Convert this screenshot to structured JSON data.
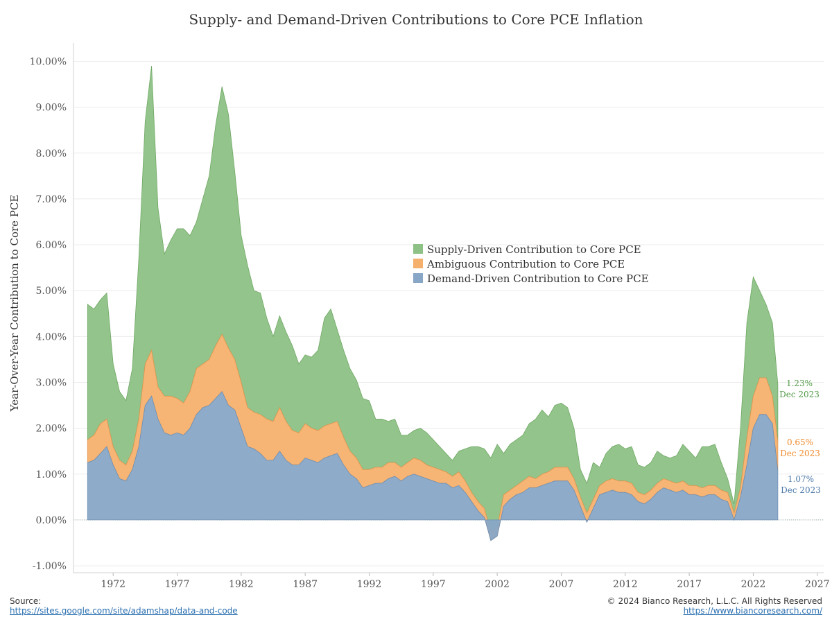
{
  "chart_data": {
    "type": "area",
    "title": "Supply- and Demand-Driven Contributions to Core PCE Inflation",
    "ylabel": "Year-Over-Year Contribution to Core PCE",
    "xlabel": "",
    "xlim": [
      1968.9,
      2027.5
    ],
    "ylim": [
      -1.15,
      10.4
    ],
    "yticks": [
      -1,
      0,
      1,
      2,
      3,
      4,
      5,
      6,
      7,
      8,
      9,
      10
    ],
    "ytick_labels": [
      "-1.00%",
      "0.00%",
      "1.00%",
      "2.00%",
      "3.00%",
      "4.00%",
      "5.00%",
      "6.00%",
      "7.00%",
      "8.00%",
      "9.00%",
      "10.00%"
    ],
    "xticks": [
      1972,
      1977,
      1982,
      1987,
      1992,
      1997,
      2002,
      2007,
      2012,
      2017,
      2022,
      2027
    ],
    "xtick_labels": [
      "1972",
      "1977",
      "1982",
      "1987",
      "1992",
      "1997",
      "2002",
      "2007",
      "2012",
      "2017",
      "2022",
      "2027"
    ],
    "legend_position": "center",
    "grid": true,
    "colors": {
      "supply": "#8dc185",
      "ambiguous": "#f6b06e",
      "demand": "#88a6c6",
      "supply_text": "#4f9a44",
      "ambiguous_text": "#f08a2a",
      "demand_text": "#4a78a8"
    },
    "series": [
      {
        "name": "Demand-Driven Contribution to Core PCE",
        "key": "demand",
        "x": [
          1970.0,
          1970.5,
          1971.0,
          1971.5,
          1972.0,
          1972.5,
          1973.0,
          1973.5,
          1974.0,
          1974.5,
          1975.0,
          1975.5,
          1976.0,
          1976.5,
          1977.0,
          1977.5,
          1978.0,
          1978.5,
          1979.0,
          1979.5,
          1980.0,
          1980.5,
          1981.0,
          1981.5,
          1982.0,
          1982.5,
          1983.0,
          1983.5,
          1984.0,
          1984.5,
          1985.0,
          1985.5,
          1986.0,
          1986.5,
          1987.0,
          1987.5,
          1988.0,
          1988.5,
          1989.0,
          1989.5,
          1990.0,
          1990.5,
          1991.0,
          1991.5,
          1992.0,
          1992.5,
          1993.0,
          1993.5,
          1994.0,
          1994.5,
          1995.0,
          1995.5,
          1996.0,
          1996.5,
          1997.0,
          1997.5,
          1998.0,
          1998.5,
          1999.0,
          1999.5,
          2000.0,
          2000.5,
          2001.0,
          2001.5,
          2002.0,
          2002.5,
          2003.0,
          2003.5,
          2004.0,
          2004.5,
          2005.0,
          2005.5,
          2006.0,
          2006.5,
          2007.0,
          2007.5,
          2008.0,
          2008.5,
          2009.0,
          2009.5,
          2010.0,
          2010.5,
          2011.0,
          2011.5,
          2012.0,
          2012.5,
          2013.0,
          2013.5,
          2014.0,
          2014.5,
          2015.0,
          2015.5,
          2016.0,
          2016.5,
          2017.0,
          2017.5,
          2018.0,
          2018.5,
          2019.0,
          2019.5,
          2020.0,
          2020.5,
          2021.0,
          2021.5,
          2022.0,
          2022.5,
          2023.0,
          2023.5,
          2023.92
        ],
        "values": [
          1.25,
          1.3,
          1.45,
          1.6,
          1.2,
          0.9,
          0.85,
          1.1,
          1.6,
          2.5,
          2.7,
          2.2,
          1.9,
          1.85,
          1.9,
          1.85,
          2.0,
          2.3,
          2.45,
          2.5,
          2.65,
          2.8,
          2.5,
          2.4,
          2.0,
          1.6,
          1.55,
          1.45,
          1.3,
          1.3,
          1.5,
          1.3,
          1.2,
          1.2,
          1.35,
          1.3,
          1.25,
          1.35,
          1.4,
          1.45,
          1.2,
          1.0,
          0.9,
          0.7,
          0.75,
          0.8,
          0.8,
          0.9,
          0.95,
          0.85,
          0.95,
          1.0,
          0.95,
          0.9,
          0.85,
          0.8,
          0.8,
          0.7,
          0.75,
          0.6,
          0.4,
          0.2,
          0.05,
          -0.45,
          -0.35,
          0.3,
          0.45,
          0.55,
          0.6,
          0.7,
          0.7,
          0.75,
          0.8,
          0.85,
          0.85,
          0.85,
          0.65,
          0.3,
          -0.05,
          0.25,
          0.55,
          0.6,
          0.65,
          0.6,
          0.6,
          0.55,
          0.4,
          0.35,
          0.45,
          0.6,
          0.7,
          0.65,
          0.6,
          0.65,
          0.55,
          0.55,
          0.5,
          0.55,
          0.55,
          0.45,
          0.4,
          0.0,
          0.5,
          1.2,
          2.0,
          2.3,
          2.3,
          2.1,
          1.07
        ]
      },
      {
        "name": "Ambiguous Contribution to Core PCE",
        "key": "ambiguous",
        "x": [
          1970.0,
          1970.5,
          1971.0,
          1971.5,
          1972.0,
          1972.5,
          1973.0,
          1973.5,
          1974.0,
          1974.5,
          1975.0,
          1975.5,
          1976.0,
          1976.5,
          1977.0,
          1977.5,
          1978.0,
          1978.5,
          1979.0,
          1979.5,
          1980.0,
          1980.5,
          1981.0,
          1981.5,
          1982.0,
          1982.5,
          1983.0,
          1983.5,
          1984.0,
          1984.5,
          1985.0,
          1985.5,
          1986.0,
          1986.5,
          1987.0,
          1987.5,
          1988.0,
          1988.5,
          1989.0,
          1989.5,
          1990.0,
          1990.5,
          1991.0,
          1991.5,
          1992.0,
          1992.5,
          1993.0,
          1993.5,
          1994.0,
          1994.5,
          1995.0,
          1995.5,
          1996.0,
          1996.5,
          1997.0,
          1997.5,
          1998.0,
          1998.5,
          1999.0,
          1999.5,
          2000.0,
          2000.5,
          2001.0,
          2001.5,
          2002.0,
          2002.5,
          2003.0,
          2003.5,
          2004.0,
          2004.5,
          2005.0,
          2005.5,
          2006.0,
          2006.5,
          2007.0,
          2007.5,
          2008.0,
          2008.5,
          2009.0,
          2009.5,
          2010.0,
          2010.5,
          2011.0,
          2011.5,
          2012.0,
          2012.5,
          2013.0,
          2013.5,
          2014.0,
          2014.5,
          2015.0,
          2015.5,
          2016.0,
          2016.5,
          2017.0,
          2017.5,
          2018.0,
          2018.5,
          2019.0,
          2019.5,
          2020.0,
          2020.5,
          2021.0,
          2021.5,
          2022.0,
          2022.5,
          2023.0,
          2023.5,
          2023.92
        ],
        "values": [
          0.5,
          0.55,
          0.65,
          0.6,
          0.4,
          0.4,
          0.35,
          0.4,
          0.6,
          0.9,
          1.0,
          0.7,
          0.8,
          0.85,
          0.75,
          0.7,
          0.8,
          1.0,
          0.95,
          1.0,
          1.15,
          1.25,
          1.25,
          1.1,
          1.0,
          0.85,
          0.8,
          0.85,
          0.9,
          0.85,
          0.95,
          0.85,
          0.75,
          0.7,
          0.75,
          0.7,
          0.7,
          0.7,
          0.7,
          0.7,
          0.6,
          0.5,
          0.45,
          0.4,
          0.35,
          0.35,
          0.35,
          0.35,
          0.3,
          0.3,
          0.3,
          0.35,
          0.35,
          0.3,
          0.3,
          0.3,
          0.25,
          0.25,
          0.3,
          0.25,
          0.2,
          0.2,
          0.2,
          0.2,
          0.2,
          0.25,
          0.2,
          0.2,
          0.25,
          0.25,
          0.2,
          0.25,
          0.25,
          0.3,
          0.3,
          0.3,
          0.25,
          0.2,
          0.2,
          0.2,
          0.2,
          0.25,
          0.25,
          0.25,
          0.25,
          0.25,
          0.2,
          0.2,
          0.2,
          0.2,
          0.2,
          0.2,
          0.2,
          0.2,
          0.2,
          0.2,
          0.2,
          0.2,
          0.2,
          0.2,
          0.2,
          0.15,
          0.2,
          0.6,
          0.7,
          0.8,
          0.8,
          0.6,
          0.65
        ]
      },
      {
        "name": "Supply-Driven Contribution to Core PCE",
        "key": "supply",
        "x": [
          1970.0,
          1970.5,
          1971.0,
          1971.5,
          1972.0,
          1972.5,
          1973.0,
          1973.5,
          1974.0,
          1974.5,
          1975.0,
          1975.5,
          1976.0,
          1976.5,
          1977.0,
          1977.5,
          1978.0,
          1978.5,
          1979.0,
          1979.5,
          1980.0,
          1980.5,
          1981.0,
          1981.5,
          1982.0,
          1982.5,
          1983.0,
          1983.5,
          1984.0,
          1984.5,
          1985.0,
          1985.5,
          1986.0,
          1986.5,
          1987.0,
          1987.5,
          1988.0,
          1988.5,
          1989.0,
          1989.5,
          1990.0,
          1990.5,
          1991.0,
          1991.5,
          1992.0,
          1992.5,
          1993.0,
          1993.5,
          1994.0,
          1994.5,
          1995.0,
          1995.5,
          1996.0,
          1996.5,
          1997.0,
          1997.5,
          1998.0,
          1998.5,
          1999.0,
          1999.5,
          2000.0,
          2000.5,
          2001.0,
          2001.5,
          2002.0,
          2002.5,
          2003.0,
          2003.5,
          2004.0,
          2004.5,
          2005.0,
          2005.5,
          2006.0,
          2006.5,
          2007.0,
          2007.5,
          2008.0,
          2008.5,
          2009.0,
          2009.5,
          2010.0,
          2010.5,
          2011.0,
          2011.5,
          2012.0,
          2012.5,
          2013.0,
          2013.5,
          2014.0,
          2014.5,
          2015.0,
          2015.5,
          2016.0,
          2016.5,
          2017.0,
          2017.5,
          2018.0,
          2018.5,
          2019.0,
          2019.5,
          2020.0,
          2020.5,
          2021.0,
          2021.5,
          2022.0,
          2022.5,
          2023.0,
          2023.5,
          2023.92
        ],
        "values": [
          2.95,
          2.75,
          2.7,
          2.75,
          1.8,
          1.5,
          1.4,
          1.8,
          3.5,
          5.3,
          6.2,
          3.9,
          3.1,
          3.4,
          3.7,
          3.8,
          3.4,
          3.2,
          3.6,
          4.0,
          4.8,
          5.4,
          5.1,
          4.1,
          3.2,
          3.1,
          2.65,
          2.65,
          2.2,
          1.85,
          2.0,
          1.95,
          1.85,
          1.5,
          1.5,
          1.55,
          1.75,
          2.35,
          2.5,
          2.0,
          1.9,
          1.8,
          1.7,
          1.55,
          1.5,
          1.05,
          1.05,
          0.9,
          0.95,
          0.7,
          0.6,
          0.6,
          0.7,
          0.7,
          0.6,
          0.5,
          0.4,
          0.35,
          0.45,
          0.7,
          1.0,
          1.2,
          1.3,
          1.6,
          1.8,
          0.9,
          1.0,
          1.0,
          1.0,
          1.15,
          1.3,
          1.4,
          1.2,
          1.35,
          1.4,
          1.3,
          1.1,
          0.6,
          0.65,
          0.8,
          0.4,
          0.6,
          0.7,
          0.8,
          0.7,
          0.8,
          0.6,
          0.6,
          0.6,
          0.7,
          0.5,
          0.5,
          0.6,
          0.8,
          0.75,
          0.6,
          0.9,
          0.85,
          0.9,
          0.6,
          0.3,
          0.2,
          1.3,
          2.5,
          2.6,
          1.9,
          1.6,
          1.6,
          1.23
        ]
      }
    ],
    "end_labels": [
      {
        "key": "supply",
        "value": "1.23%",
        "date": "Dec 2023"
      },
      {
        "key": "ambiguous",
        "value": "0.65%",
        "date": "Dec 2023"
      },
      {
        "key": "demand",
        "value": "1.07%",
        "date": "Dec 2023"
      }
    ]
  },
  "footer": {
    "source_label": "Source:",
    "source_link": "https://sites.google.com/site/adamshap/data-and-code",
    "copyright": "© 2024 Bianco Research, L.L.C. All Rights Reserved",
    "site_link": "https://www.biancoresearch.com/"
  }
}
